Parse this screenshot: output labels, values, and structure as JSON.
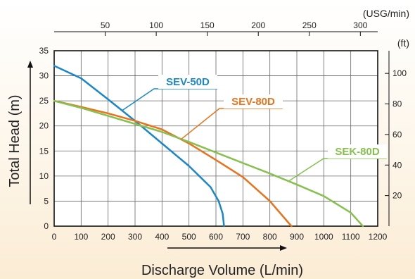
{
  "chart_data": {
    "type": "line",
    "xlabel": "Discharge Volume (L/min)",
    "ylabel": "Total Head (m)",
    "x_ticks": [
      "0",
      "100",
      "200",
      "300",
      "400",
      "500",
      "600",
      "700",
      "800",
      "900",
      "1000",
      "1100",
      "1200"
    ],
    "y_ticks": [
      "0",
      "5",
      "10",
      "15",
      "20",
      "25",
      "30",
      "35"
    ],
    "xlim": [
      0,
      1200
    ],
    "ylim": [
      0,
      35
    ],
    "secondary_x_axis": {
      "unit": "(USG/min)",
      "ticks": [
        "50",
        "100",
        "150",
        "200",
        "250",
        "300"
      ]
    },
    "secondary_y_axis": {
      "unit": "(ft)",
      "ticks": [
        "20",
        "40",
        "60",
        "80",
        "100"
      ]
    },
    "grid": true,
    "series": [
      {
        "name": "SEV-50D",
        "color": "#1b87c9",
        "x": [
          0,
          100,
          200,
          300,
          400,
          500,
          580,
          610,
          625,
          630
        ],
        "y": [
          32,
          29.5,
          25.3,
          21,
          16.5,
          12,
          7.8,
          5,
          2.5,
          0
        ]
      },
      {
        "name": "SEV-80D",
        "color": "#e8731e",
        "x": [
          0,
          100,
          200,
          300,
          400,
          500,
          600,
          700,
          800,
          880
        ],
        "y": [
          25,
          23.8,
          22.5,
          21,
          19.3,
          16.5,
          13.2,
          9.8,
          5,
          0
        ]
      },
      {
        "name": "SEK-80D",
        "color": "#86c04f",
        "x": [
          0,
          100,
          200,
          300,
          400,
          500,
          600,
          700,
          800,
          900,
          1000,
          1100,
          1145
        ],
        "y": [
          25,
          23.6,
          22,
          20.4,
          18.8,
          16.8,
          14.7,
          12.6,
          10.5,
          8.3,
          6,
          2.7,
          0
        ]
      }
    ]
  }
}
